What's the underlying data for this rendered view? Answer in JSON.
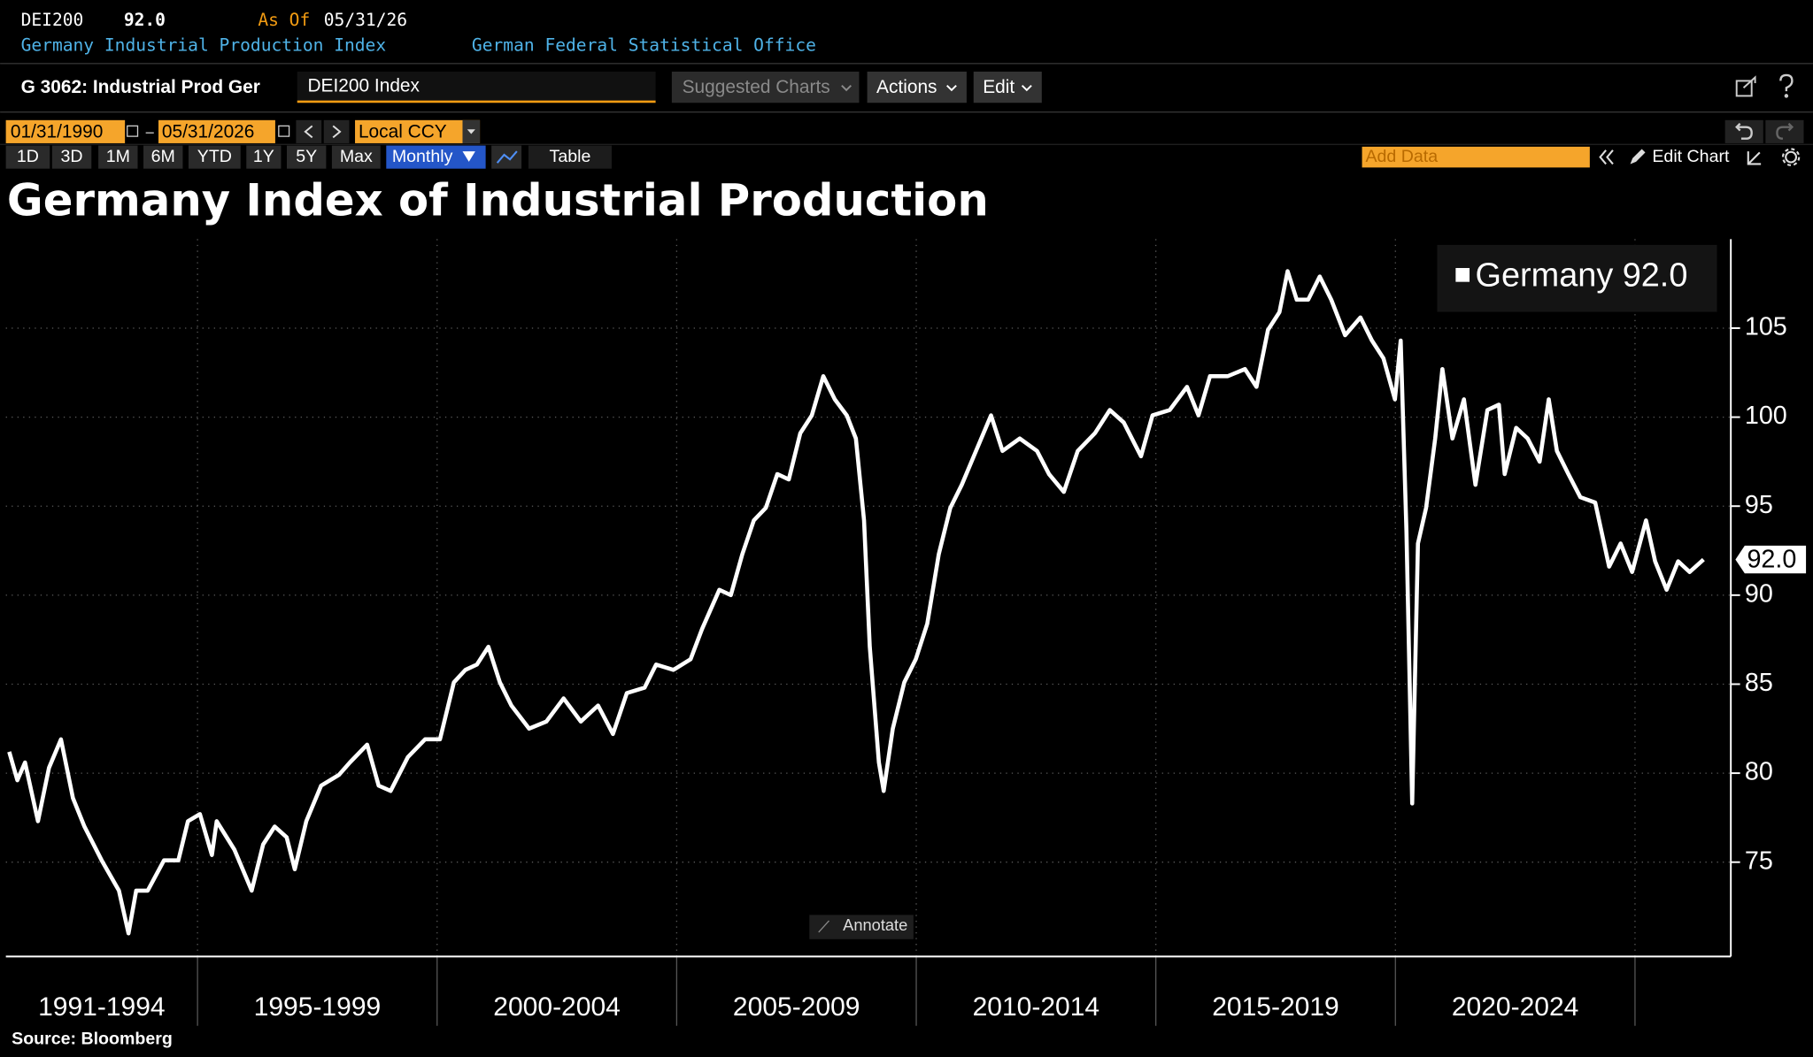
{
  "header": {
    "ticker": "DEI200",
    "last_price": "92.0",
    "as_of_label": "As Of",
    "as_of_date": "05/31/26",
    "name": "Germany Industrial Production Index",
    "source": "German Federal Statistical Office"
  },
  "toolbar": {
    "page_title": "G 3062: Industrial Prod Ger",
    "security": "DEI200 Index",
    "buttons": [
      "Suggested Charts",
      "Actions",
      "Edit"
    ]
  },
  "controls": {
    "start_date": "01/31/1990",
    "end_date": "05/31/2026",
    "currency": "Local CCY",
    "periods": [
      "1D",
      "3D",
      "1M",
      "6M",
      "YTD",
      "1Y",
      "5Y",
      "Max"
    ],
    "frequency": "Monthly",
    "table": "Table",
    "add_data": "Add Data",
    "edit_chart": "Edit Chart",
    "annotate": "Annotate"
  },
  "chart_data": {
    "type": "line",
    "title": "Germany Index of Industrial Production",
    "source": "Source: Bloomberg",
    "x": [
      1991.07,
      1991.24,
      1991.4,
      1991.67,
      1991.9,
      1992.15,
      1992.4,
      1992.64,
      1993.0,
      1993.36,
      1993.56,
      1993.72,
      1993.96,
      1994.3,
      1994.6,
      1994.8,
      1995.05,
      1995.3,
      1995.4,
      1995.77,
      1996.13,
      1996.37,
      1996.61,
      1996.86,
      1997.03,
      1997.27,
      1997.58,
      1997.95,
      1998.18,
      1998.54,
      1998.78,
      1999.03,
      1999.39,
      1999.75,
      2000.06,
      2000.35,
      2000.59,
      2000.83,
      2001.07,
      2001.31,
      2001.55,
      2001.92,
      2002.28,
      2002.64,
      2003.0,
      2003.36,
      2003.67,
      2003.96,
      2004.33,
      2004.57,
      2004.93,
      2005.29,
      2005.53,
      2005.89,
      2006.13,
      2006.37,
      2006.61,
      2006.86,
      2007.1,
      2007.34,
      2007.58,
      2007.82,
      2008.06,
      2008.3,
      2008.55,
      2008.74,
      2008.91,
      2009.03,
      2009.22,
      2009.32,
      2009.51,
      2009.75,
      2009.99,
      2010.23,
      2010.47,
      2010.71,
      2010.95,
      2011.2,
      2011.56,
      2011.8,
      2012.16,
      2012.52,
      2012.77,
      2013.08,
      2013.37,
      2013.73,
      2014.04,
      2014.33,
      2014.69,
      2014.93,
      2015.29,
      2015.65,
      2015.89,
      2016.13,
      2016.5,
      2016.86,
      2017.1,
      2017.34,
      2017.58,
      2017.75,
      2017.94,
      2018.18,
      2018.42,
      2018.66,
      2018.95,
      2019.27,
      2019.51,
      2019.75,
      2019.99,
      2020.11,
      2020.23,
      2020.35,
      2020.47,
      2020.64,
      2020.83,
      2020.98,
      2021.19,
      2021.43,
      2021.67,
      2021.92,
      2022.16,
      2022.28,
      2022.52,
      2022.76,
      2023.01,
      2023.2,
      2023.37,
      2023.61,
      2023.86,
      2024.17,
      2024.46,
      2024.7,
      2024.94,
      2025.23,
      2025.42,
      2025.66,
      2025.9,
      2026.14,
      2026.43
    ],
    "series": [
      {
        "name": "Germany",
        "color": "#ffffff",
        "last_value_label": "92.0",
        "values": [
          81.2,
          79.6,
          80.6,
          77.3,
          80.3,
          81.9,
          78.6,
          77.0,
          75.1,
          73.4,
          71.0,
          73.4,
          73.4,
          75.1,
          75.1,
          77.3,
          77.7,
          75.4,
          77.3,
          75.7,
          73.4,
          76.0,
          77.0,
          76.4,
          74.6,
          77.3,
          79.3,
          79.9,
          80.6,
          81.6,
          79.3,
          79.0,
          80.9,
          81.9,
          81.9,
          85.1,
          85.8,
          86.1,
          87.1,
          85.1,
          83.8,
          82.5,
          82.9,
          84.2,
          82.9,
          83.8,
          82.2,
          84.5,
          84.8,
          86.1,
          85.8,
          86.4,
          88.1,
          90.3,
          90.0,
          92.3,
          94.2,
          94.9,
          96.8,
          96.5,
          99.1,
          100.1,
          102.3,
          101.0,
          100.1,
          98.8,
          94.2,
          87.1,
          80.6,
          79.0,
          82.5,
          85.1,
          86.4,
          88.4,
          92.3,
          94.9,
          96.2,
          97.8,
          100.1,
          98.1,
          98.8,
          98.1,
          96.8,
          95.8,
          98.1,
          99.1,
          100.4,
          99.7,
          97.8,
          100.1,
          100.4,
          101.7,
          100.1,
          102.3,
          102.3,
          102.7,
          101.7,
          104.9,
          105.9,
          108.2,
          106.6,
          106.6,
          107.9,
          106.6,
          104.6,
          105.6,
          104.3,
          103.3,
          101.0,
          104.3,
          93.6,
          78.3,
          92.9,
          94.9,
          98.8,
          102.7,
          98.8,
          101.0,
          96.2,
          100.4,
          100.7,
          96.8,
          99.4,
          98.8,
          97.5,
          101.0,
          98.1,
          96.8,
          95.5,
          95.2,
          91.6,
          92.9,
          91.3,
          94.2,
          91.9,
          90.3,
          91.9,
          91.3,
          92.0
        ]
      }
    ],
    "xlim": [
      1991,
      2027
    ],
    "ylim": [
      69.7,
      110
    ],
    "yticks": [
      75,
      80,
      85,
      90,
      95,
      100,
      105
    ],
    "grid": true,
    "legend": "top-right",
    "x_periods": [
      {
        "label": "1991-1994",
        "start": 1991,
        "end": 1995
      },
      {
        "label": "1995-1999",
        "start": 1995,
        "end": 2000
      },
      {
        "label": "2000-2004",
        "start": 2000,
        "end": 2005
      },
      {
        "label": "2005-2009",
        "start": 2005,
        "end": 2010
      },
      {
        "label": "2010-2014",
        "start": 2010,
        "end": 2015
      },
      {
        "label": "2015-2019",
        "start": 2015,
        "end": 2020
      },
      {
        "label": "2020-2024",
        "start": 2020,
        "end": 2025
      }
    ]
  }
}
